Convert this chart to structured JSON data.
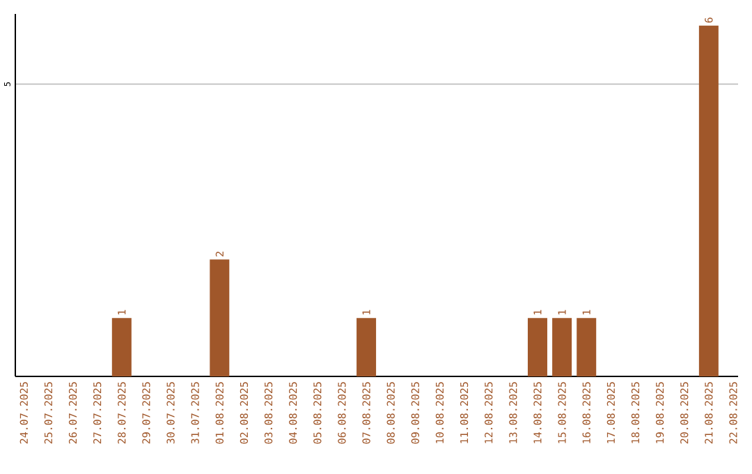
{
  "chart_data": {
    "type": "bar",
    "categories": [
      "24.07.2025",
      "25.07.2025",
      "26.07.2025",
      "27.07.2025",
      "28.07.2025",
      "29.07.2025",
      "30.07.2025",
      "31.07.2025",
      "01.08.2025",
      "02.08.2025",
      "03.08.2025",
      "04.08.2025",
      "05.08.2025",
      "06.08.2025",
      "07.08.2025",
      "08.08.2025",
      "09.08.2025",
      "10.08.2025",
      "11.08.2025",
      "12.08.2025",
      "13.08.2025",
      "14.08.2025",
      "15.08.2025",
      "16.08.2025",
      "17.08.2025",
      "18.08.2025",
      "19.08.2025",
      "20.08.2025",
      "21.08.2025",
      "22.08.2025"
    ],
    "values": [
      null,
      null,
      null,
      null,
      1,
      null,
      null,
      null,
      2,
      null,
      null,
      null,
      null,
      null,
      1,
      null,
      null,
      null,
      null,
      null,
      null,
      1,
      1,
      1,
      null,
      null,
      null,
      null,
      6,
      null
    ],
    "color": "#a0572a",
    "ylim": [
      0,
      6.2
    ],
    "yticks": [
      5
    ],
    "grid": "y",
    "data_labels": true
  }
}
